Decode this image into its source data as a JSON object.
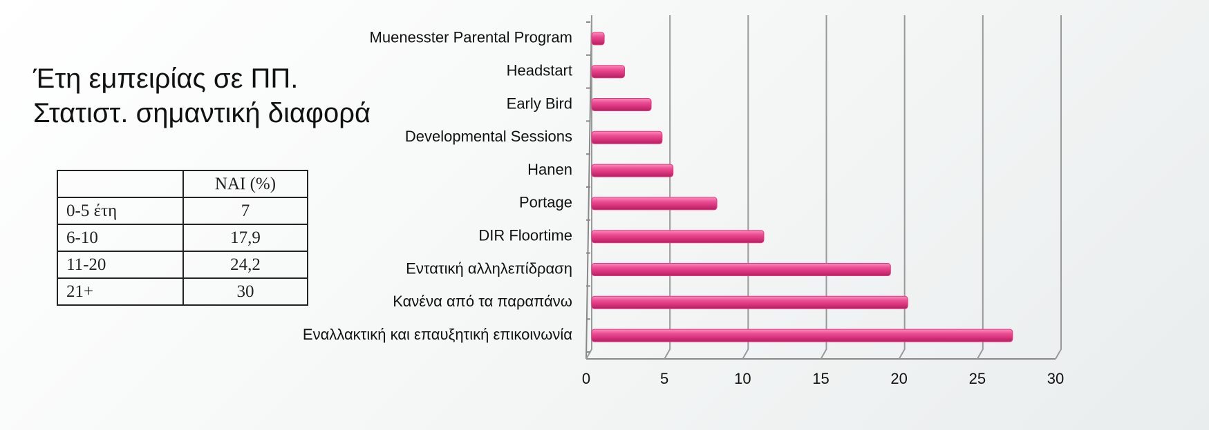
{
  "slide_title": [
    "Έτη εμπειρίας σε ΠΠ.",
    "Στατιστ. σημαντική διαφορά"
  ],
  "table": {
    "header": [
      "",
      "ΝΑΙ (%)"
    ],
    "rows": [
      [
        "0-5 έτη",
        "7"
      ],
      [
        "6-10",
        "17,9"
      ],
      [
        "11-20",
        "24,2"
      ],
      [
        "21+",
        "30"
      ]
    ]
  },
  "chart_data": {
    "type": "bar",
    "orientation": "horizontal",
    "categories": [
      "Muenesster Parental Program",
      "Headstart",
      "Early Bird",
      "Developmental Sessions",
      "Hanen",
      "Portage",
      "DIR Floortime",
      "Εντατική αλληλεπίδραση",
      "Κανένα από τα παραπάνω",
      "Εναλλακτική και επαυξητική επικοινωνία"
    ],
    "values": [
      0.8,
      2.1,
      3.8,
      4.5,
      5.2,
      8,
      11,
      19.1,
      20.2,
      26.9
    ],
    "color": "#e8347f",
    "xlim": [
      0,
      30
    ],
    "xticks": [
      0,
      5,
      10,
      15,
      20,
      25,
      30
    ],
    "grid": true
  }
}
